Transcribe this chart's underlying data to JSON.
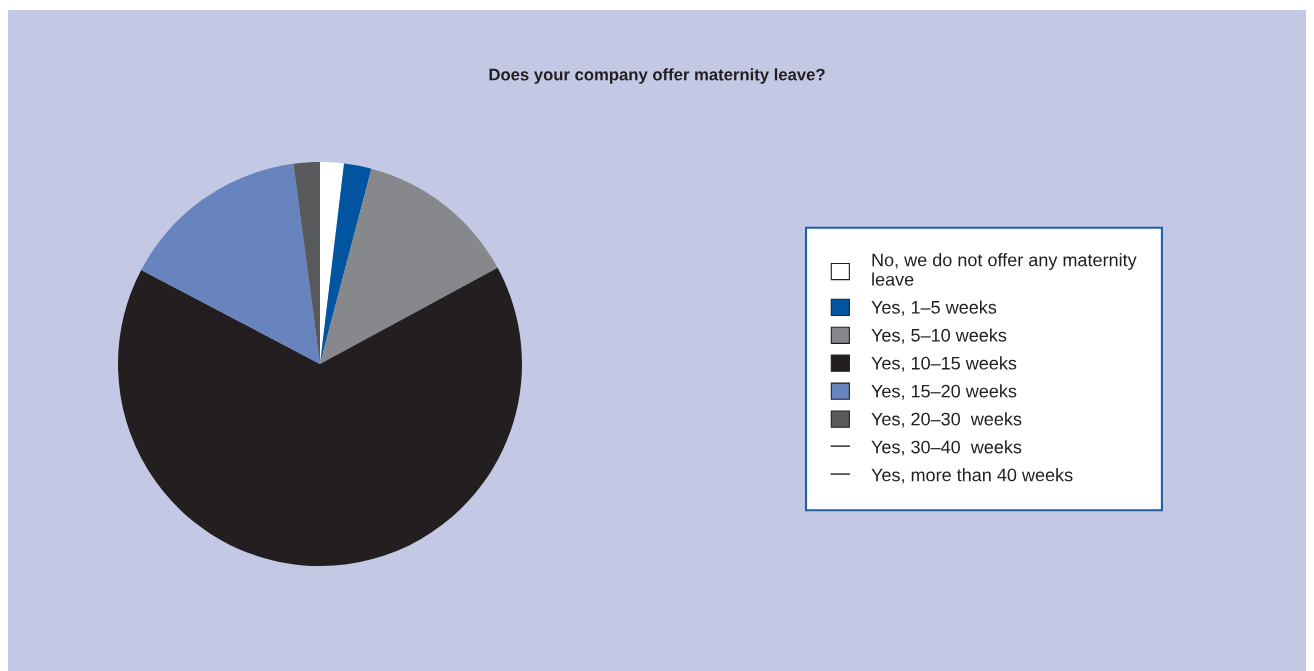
{
  "chart_data": {
    "type": "pie",
    "title": "Does your company offer maternity leave?",
    "categories": [
      "No, we do not offer any maternity\nleave",
      "Yes, 1–5 weeks",
      "Yes, 5–10 weeks",
      "Yes, 10–15 weeks",
      "Yes, 15–20 weeks",
      "Yes, 20–30  weeks",
      "Yes, 30–40  weeks",
      "Yes, more than 40 weeks"
    ],
    "values": [
      1.9,
      2.2,
      13.0,
      65.6,
      15.2,
      2.1,
      0,
      0
    ],
    "colors": [
      "#ffffff",
      "#0054a0",
      "#87888c",
      "#231f20",
      "#6884bf",
      "#58595b",
      "#231f20",
      "#231f20"
    ],
    "legend": "right"
  }
}
